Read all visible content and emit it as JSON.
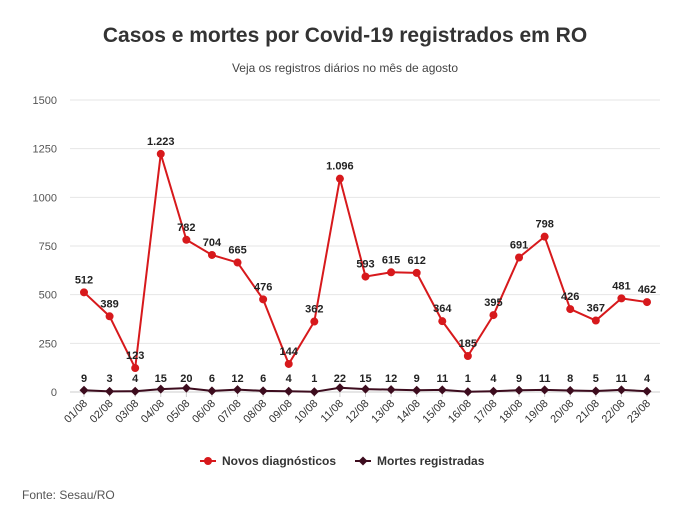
{
  "header": {
    "title": "Casos e mortes por Covid-19 registrados em RO",
    "subtitle": "Veja os registros diários no mês de agosto"
  },
  "source": "Fonte: Sesau/RO",
  "chart_data": {
    "type": "line",
    "title": "Casos e mortes por Covid-19 registrados em RO",
    "subtitle": "Veja os registros diários no mês de agosto",
    "xlabel": "",
    "ylabel": "",
    "ylim": [
      0,
      1500
    ],
    "yticks": [
      0,
      250,
      500,
      750,
      1000,
      1250,
      1500
    ],
    "ytick_labels": [
      "0",
      "250",
      "500",
      "750",
      "1000",
      "1250",
      "1500"
    ],
    "grid": true,
    "legend_position": "bottom",
    "categories": [
      "01/08",
      "02/08",
      "03/08",
      "04/08",
      "05/08",
      "06/08",
      "07/08",
      "08/08",
      "09/08",
      "10/08",
      "11/08",
      "12/08",
      "13/08",
      "14/08",
      "15/08",
      "16/08",
      "17/08",
      "18/08",
      "19/08",
      "20/08",
      "21/08",
      "22/08",
      "23/08"
    ],
    "series": [
      {
        "name": "Novos diagnósticos",
        "color": "#d7191c",
        "values": [
          512,
          389,
          123,
          1223,
          782,
          704,
          665,
          476,
          144,
          362,
          1096,
          593,
          615,
          612,
          364,
          185,
          395,
          691,
          798,
          426,
          367,
          481,
          462
        ],
        "labels": [
          "512",
          "389",
          "123",
          "1.223",
          "782",
          "704",
          "665",
          "476",
          "144",
          "362",
          "1.096",
          "593",
          "615",
          "612",
          "364",
          "185",
          "395",
          "691",
          "798",
          "426",
          "367",
          "481",
          "462"
        ]
      },
      {
        "name": "Mortes registradas",
        "color": "#3d0c1e",
        "values": [
          9,
          3,
          4,
          15,
          20,
          6,
          12,
          6,
          4,
          1,
          22,
          15,
          12,
          9,
          11,
          1,
          4,
          9,
          11,
          8,
          5,
          11,
          4
        ],
        "labels": [
          "9",
          "3",
          "4",
          "15",
          "20",
          "6",
          "12",
          "6",
          "4",
          "1",
          "22",
          "15",
          "12",
          "9",
          "11",
          "1",
          "4",
          "9",
          "11",
          "8",
          "5",
          "11",
          "4"
        ]
      }
    ]
  }
}
